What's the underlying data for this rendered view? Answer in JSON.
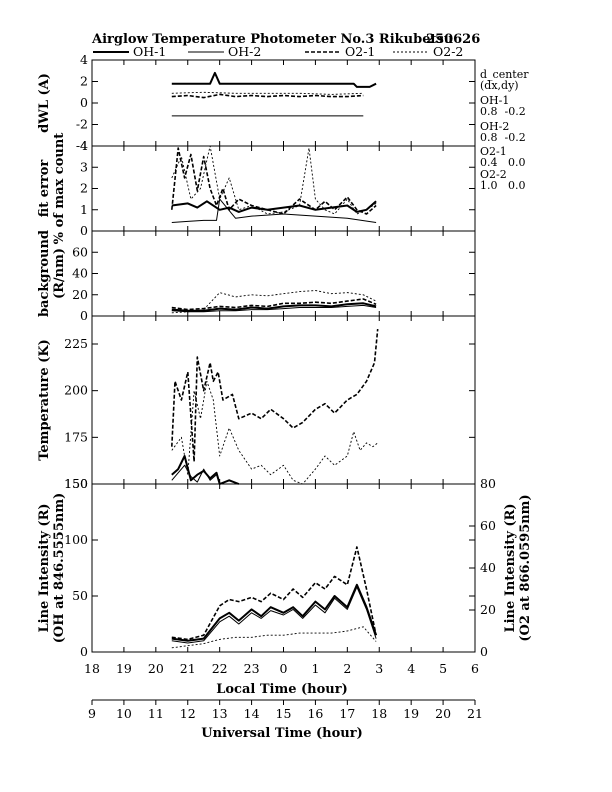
{
  "header": {
    "title": "Airglow Temperature Photometer No.3  Rikubetsu",
    "date": "250626",
    "legend": [
      {
        "name": "OH-1",
        "style": "solid-thick"
      },
      {
        "name": "OH-2",
        "style": "solid-thin"
      },
      {
        "name": "O2-1",
        "style": "dashed-thick"
      },
      {
        "name": "O2-2",
        "style": "dashed-thin"
      }
    ]
  },
  "side_info": {
    "d_center_label": "d_center",
    "dxdy_label": "(dx,dy)",
    "entries": [
      {
        "name": "OH-1",
        "values": "0.8  -0.2"
      },
      {
        "name": "OH-2",
        "values": "0.8  -0.2"
      },
      {
        "name": "O2-1",
        "values": "0.4   0.0"
      },
      {
        "name": "O2-2",
        "values": "1.0   0.0"
      }
    ]
  },
  "colors": {
    "line": "#000000",
    "background": "#ffffff"
  },
  "chart_data": [
    {
      "id": "dwl",
      "type": "line",
      "ylabel_lines": [
        "dWL (A)"
      ],
      "ylim": [
        -4,
        4
      ],
      "yticks": [
        4,
        2,
        0,
        -2,
        -4
      ],
      "xlim": [
        18,
        6
      ],
      "series": [
        {
          "name": "OH-1",
          "style": "solid-thick",
          "x": [
            20.5,
            21.7,
            21.85,
            22.0,
            22.2,
            25.0,
            26.2,
            26.3,
            26.7,
            26.9
          ],
          "y": [
            1.8,
            1.8,
            2.8,
            1.8,
            1.8,
            1.8,
            1.8,
            1.5,
            1.5,
            1.8
          ]
        },
        {
          "name": "OH-2",
          "style": "solid-thin",
          "x": [
            20.5,
            21.5,
            22.5,
            23.5,
            24.5,
            25.5,
            26.5
          ],
          "y": [
            -1.2,
            -1.2,
            -1.2,
            -1.2,
            -1.2,
            -1.2,
            -1.2
          ]
        },
        {
          "name": "O2-1",
          "style": "dashed-thick",
          "x": [
            20.5,
            21.0,
            21.5,
            22.0,
            22.5,
            23.0,
            23.5,
            24.0,
            24.5,
            25.0,
            25.5,
            26.0,
            26.5
          ],
          "y": [
            0.6,
            0.7,
            0.5,
            0.8,
            0.6,
            0.7,
            0.6,
            0.7,
            0.6,
            0.7,
            0.6,
            0.6,
            0.7
          ]
        },
        {
          "name": "O2-2",
          "style": "dashed-thin",
          "x": [
            20.5,
            21.5,
            22.5,
            23.5,
            24.5,
            25.5,
            26.5
          ],
          "y": [
            0.9,
            1.0,
            0.9,
            0.9,
            0.9,
            0.8,
            0.9
          ]
        }
      ]
    },
    {
      "id": "fit_error",
      "type": "line",
      "ylabel_lines": [
        "fit error",
        "% of max count"
      ],
      "ylim": [
        0,
        4
      ],
      "yticks": [
        4,
        3,
        2,
        1,
        0
      ],
      "xlim": [
        18,
        6
      ],
      "series": [
        {
          "name": "OH-1",
          "style": "solid-thick",
          "x": [
            20.5,
            21.0,
            21.3,
            21.6,
            22.0,
            22.3,
            22.6,
            23.0,
            23.5,
            24.0,
            24.5,
            25.0,
            25.5,
            26.0,
            26.3,
            26.6,
            26.9
          ],
          "y": [
            1.2,
            1.3,
            1.1,
            1.4,
            1.0,
            1.1,
            0.9,
            1.1,
            1.0,
            1.1,
            1.2,
            1.0,
            1.1,
            1.2,
            0.9,
            1.0,
            1.4
          ]
        },
        {
          "name": "OH-2",
          "style": "solid-thin",
          "x": [
            20.5,
            21.0,
            21.5,
            21.9,
            22.0,
            22.5,
            23.0,
            24.0,
            25.0,
            26.0,
            26.9
          ],
          "y": [
            0.4,
            0.45,
            0.5,
            0.5,
            1.5,
            0.6,
            0.7,
            0.8,
            0.7,
            0.6,
            0.4
          ]
        },
        {
          "name": "O2-1",
          "style": "dashed-thick",
          "x": [
            20.5,
            20.7,
            20.9,
            21.1,
            21.3,
            21.5,
            21.7,
            21.9,
            22.1,
            22.3,
            22.6,
            23.0,
            23.5,
            24.0,
            24.5,
            25.0,
            25.3,
            25.6,
            26.0,
            26.3,
            26.6,
            26.9
          ],
          "y": [
            1.0,
            3.9,
            2.5,
            3.6,
            1.9,
            3.5,
            2.0,
            1.2,
            2.0,
            1.0,
            1.5,
            1.2,
            1.0,
            0.8,
            1.5,
            1.0,
            1.4,
            1.0,
            1.6,
            1.0,
            0.8,
            1.2
          ]
        },
        {
          "name": "O2-2",
          "style": "dashed-thin",
          "x": [
            20.5,
            20.8,
            21.1,
            21.4,
            21.7,
            22.0,
            22.3,
            22.6,
            23.0,
            23.5,
            24.0,
            24.5,
            24.8,
            25.0,
            25.3,
            25.6,
            26.0,
            26.3,
            26.6,
            26.9
          ],
          "y": [
            2.5,
            3.5,
            1.5,
            2.0,
            4.0,
            1.5,
            2.5,
            1.0,
            1.2,
            0.8,
            0.9,
            1.2,
            3.9,
            1.5,
            1.0,
            0.8,
            1.5,
            0.8,
            1.0,
            1.3
          ]
        }
      ]
    },
    {
      "id": "background",
      "type": "line",
      "ylabel_lines": [
        "background",
        "(R/nm)"
      ],
      "ylim": [
        0,
        80
      ],
      "yticks": [
        60,
        40,
        20,
        0
      ],
      "xlim": [
        18,
        6
      ],
      "series": [
        {
          "name": "OH-1",
          "style": "solid-thick",
          "x": [
            20.5,
            21.0,
            21.5,
            22.0,
            22.5,
            23.0,
            23.5,
            24.0,
            24.5,
            25.0,
            25.5,
            26.0,
            26.5,
            26.9
          ],
          "y": [
            6,
            5,
            5,
            7,
            6,
            8,
            7,
            9,
            10,
            10,
            9,
            11,
            12,
            9
          ]
        },
        {
          "name": "OH-2",
          "style": "solid-thin",
          "x": [
            20.5,
            21.0,
            21.5,
            22.0,
            22.5,
            23.0,
            23.5,
            24.0,
            24.5,
            25.0,
            25.5,
            26.0,
            26.5,
            26.9
          ],
          "y": [
            5,
            4,
            4,
            5,
            5,
            6,
            6,
            7,
            8,
            8,
            8,
            9,
            10,
            8
          ]
        },
        {
          "name": "O2-1",
          "style": "dashed-thick",
          "x": [
            20.5,
            21.0,
            21.5,
            22.0,
            22.5,
            23.0,
            23.5,
            24.0,
            24.5,
            25.0,
            25.5,
            26.0,
            26.5,
            26.9
          ],
          "y": [
            8,
            6,
            7,
            9,
            8,
            10,
            9,
            12,
            12,
            13,
            12,
            14,
            16,
            11
          ]
        },
        {
          "name": "O2-2",
          "style": "dashed-thin",
          "x": [
            20.5,
            21.0,
            21.5,
            22.0,
            22.5,
            23.0,
            23.5,
            24.0,
            24.5,
            25.0,
            25.5,
            26.0,
            26.5,
            26.9
          ],
          "y": [
            3,
            4,
            6,
            22,
            18,
            20,
            19,
            21,
            23,
            24,
            21,
            22,
            20,
            14
          ]
        }
      ]
    },
    {
      "id": "temperature",
      "type": "line",
      "ylabel_lines": [
        "Temperature (K)"
      ],
      "ylim": [
        150,
        240
      ],
      "yticks": [
        225,
        200,
        175,
        150
      ],
      "xlim": [
        18,
        6
      ],
      "series": [
        {
          "name": "OH-1",
          "style": "solid-thick",
          "x": [
            20.5,
            20.7,
            20.9,
            21.1,
            21.3,
            21.5,
            21.7,
            21.9,
            22.0,
            22.3,
            22.6
          ],
          "y": [
            155,
            158,
            165,
            152,
            155,
            157,
            153,
            156,
            150,
            152,
            150
          ]
        },
        {
          "name": "OH-2",
          "style": "solid-thin",
          "x": [
            20.5,
            20.7,
            20.9,
            21.1,
            21.3,
            21.5,
            21.7,
            21.9,
            22.0,
            22.3,
            22.6
          ],
          "y": [
            152,
            156,
            160,
            154,
            151,
            158,
            152,
            155,
            149,
            150,
            148
          ]
        },
        {
          "name": "O2-1",
          "style": "dashed-thick",
          "x": [
            20.5,
            20.6,
            20.8,
            21.0,
            21.2,
            21.3,
            21.5,
            21.7,
            21.8,
            21.95,
            22.1,
            22.4,
            22.6,
            23.0,
            23.3,
            23.6,
            24.0,
            24.3,
            24.6,
            25.0,
            25.3,
            25.6,
            26.0,
            26.3,
            26.6,
            26.85,
            26.95
          ],
          "y": [
            170,
            205,
            195,
            210,
            162,
            218,
            200,
            215,
            205,
            210,
            195,
            198,
            185,
            188,
            185,
            190,
            185,
            180,
            183,
            190,
            193,
            188,
            195,
            198,
            205,
            215,
            233
          ]
        },
        {
          "name": "O2-2",
          "style": "dashed-thin",
          "x": [
            20.5,
            20.8,
            21.0,
            21.2,
            21.4,
            21.6,
            21.8,
            22.0,
            22.3,
            22.6,
            23.0,
            23.3,
            23.6,
            24.0,
            24.3,
            24.6,
            25.0,
            25.3,
            25.6,
            26.0,
            26.2,
            26.4,
            26.6,
            26.8,
            26.95
          ],
          "y": [
            168,
            175,
            155,
            200,
            185,
            205,
            195,
            165,
            180,
            168,
            158,
            160,
            155,
            160,
            152,
            150,
            158,
            165,
            160,
            165,
            178,
            168,
            172,
            170,
            172
          ]
        }
      ]
    },
    {
      "id": "intensity",
      "type": "line",
      "ylabel_lines": [
        "Line Intensity (R)",
        "(OH at 846.5555nm)"
      ],
      "ylabel_right_lines": [
        "Line Intensity (R)",
        "(O2 at 866.0595nm)"
      ],
      "ylim": [
        0,
        150
      ],
      "yticks": [
        150,
        100,
        50,
        0
      ],
      "ylim_right": [
        0,
        80
      ],
      "yticks_right": [
        80,
        60,
        40,
        20,
        0
      ],
      "xlim": [
        18,
        6
      ],
      "series": [
        {
          "name": "OH-1",
          "style": "solid-thick",
          "axis": "left",
          "x": [
            20.5,
            21.0,
            21.5,
            22.0,
            22.3,
            22.6,
            23.0,
            23.3,
            23.6,
            24.0,
            24.3,
            24.6,
            25.0,
            25.3,
            25.6,
            26.0,
            26.3,
            26.6,
            26.9
          ],
          "y": [
            12,
            10,
            12,
            30,
            35,
            28,
            38,
            32,
            40,
            35,
            40,
            32,
            45,
            38,
            50,
            40,
            60,
            40,
            15
          ]
        },
        {
          "name": "OH-2",
          "style": "solid-thin",
          "axis": "left",
          "x": [
            20.5,
            21.0,
            21.5,
            22.0,
            22.3,
            22.6,
            23.0,
            23.3,
            23.6,
            24.0,
            24.3,
            24.6,
            25.0,
            25.3,
            25.6,
            26.0,
            26.3,
            26.6,
            26.9
          ],
          "y": [
            10,
            8,
            10,
            27,
            32,
            25,
            35,
            30,
            37,
            33,
            38,
            30,
            42,
            35,
            48,
            38,
            58,
            38,
            12
          ]
        },
        {
          "name": "O2-1",
          "style": "dashed-thick",
          "axis": "right",
          "x": [
            20.5,
            21.0,
            21.5,
            22.0,
            22.3,
            22.6,
            23.0,
            23.3,
            23.6,
            24.0,
            24.3,
            24.6,
            25.0,
            25.3,
            25.6,
            26.0,
            26.3,
            26.6,
            26.9
          ],
          "y": [
            7,
            6,
            8,
            22,
            25,
            24,
            26,
            24,
            28,
            25,
            30,
            26,
            33,
            30,
            36,
            32,
            50,
            30,
            8
          ]
        },
        {
          "name": "O2-2",
          "style": "dashed-thin",
          "axis": "right",
          "x": [
            20.5,
            21.0,
            21.5,
            22.0,
            22.5,
            23.0,
            23.5,
            24.0,
            24.5,
            25.0,
            25.5,
            26.0,
            26.5,
            26.9
          ],
          "y": [
            2,
            3,
            4,
            6,
            7,
            7,
            8,
            8,
            9,
            9,
            9,
            10,
            12,
            5
          ]
        }
      ]
    }
  ],
  "x_axes": {
    "local": {
      "label": "Local Time (hour)",
      "ticks": [
        "18",
        "19",
        "20",
        "21",
        "22",
        "23",
        "0",
        "1",
        "2",
        "3",
        "4",
        "5",
        "6"
      ]
    },
    "universal": {
      "label": "Universal Time (hour)",
      "ticks": [
        "9",
        "10",
        "11",
        "12",
        "13",
        "14",
        "15",
        "16",
        "17",
        "18",
        "19",
        "20",
        "21"
      ]
    }
  }
}
